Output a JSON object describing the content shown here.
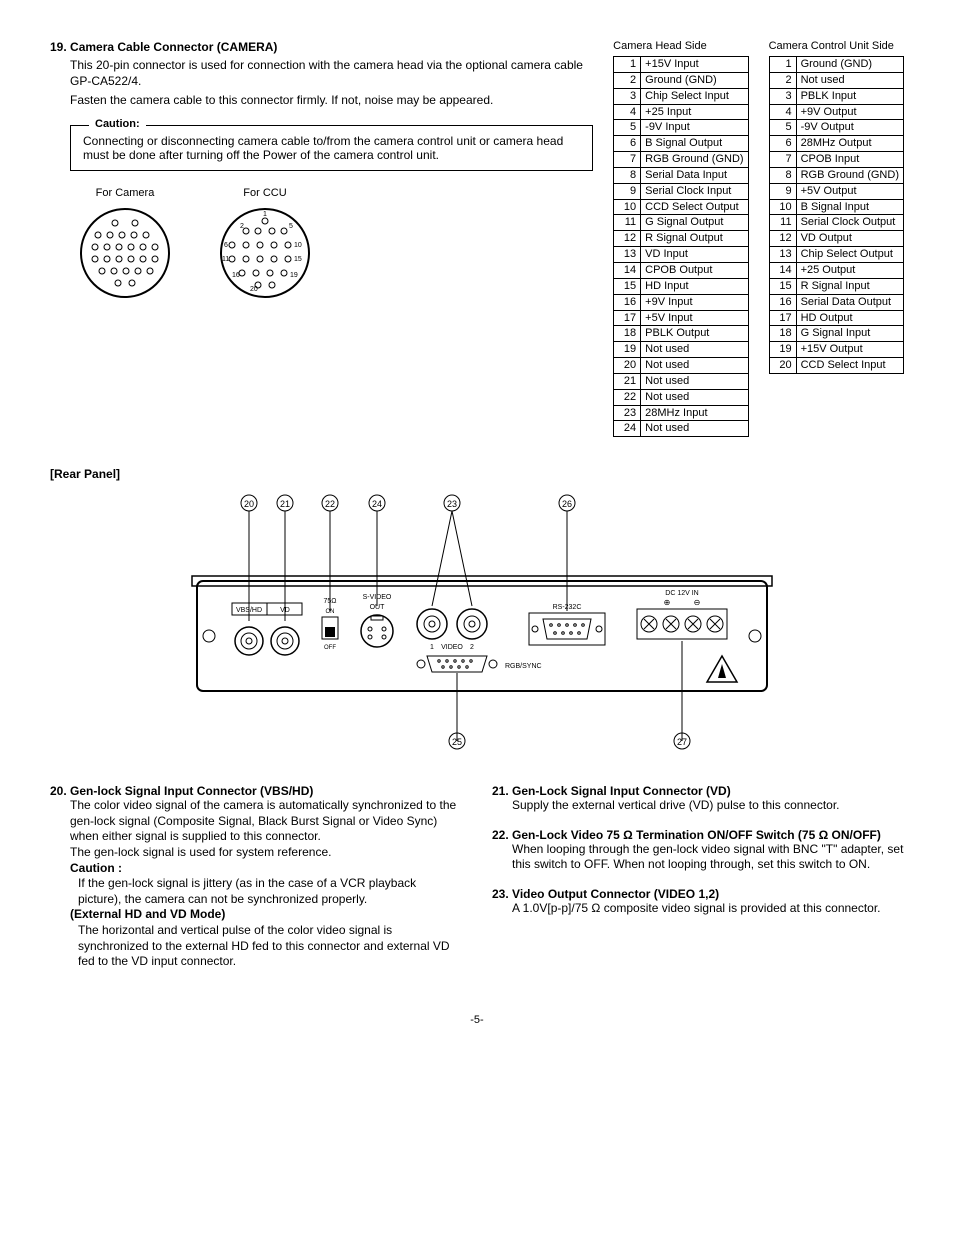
{
  "section19": {
    "num": "19.",
    "title": "Camera Cable Connector (CAMERA)",
    "p1": "This 20-pin connector is used for connection with the camera head via the optional camera cable GP-CA522/4.",
    "p2": "Fasten the camera cable to this connector firmly. If not, noise may be appeared.",
    "caution_label": "Caution:",
    "caution_text": "Connecting or disconnecting camera cable to/from the camera control unit or camera head must be done after turning off the Power of the camera control unit."
  },
  "conn_labels": {
    "camera": "For Camera",
    "ccu": "For CCU"
  },
  "table_head": {
    "title": "Camera Head Side",
    "rows": [
      [
        "1",
        "+15V Input"
      ],
      [
        "2",
        "Ground (GND)"
      ],
      [
        "3",
        "Chip Select Input"
      ],
      [
        "4",
        "+25 Input"
      ],
      [
        "5",
        "-9V Input"
      ],
      [
        "6",
        "B Signal Output"
      ],
      [
        "7",
        "RGB Ground (GND)"
      ],
      [
        "8",
        "Serial Data Input"
      ],
      [
        "9",
        "Serial Clock Input"
      ],
      [
        "10",
        "CCD Select Output"
      ],
      [
        "11",
        "G Signal Output"
      ],
      [
        "12",
        "R Signal Output"
      ],
      [
        "13",
        "VD Input"
      ],
      [
        "14",
        "CPOB Output"
      ],
      [
        "15",
        "HD Input"
      ],
      [
        "16",
        "+9V Input"
      ],
      [
        "17",
        "+5V Input"
      ],
      [
        "18",
        "PBLK Output"
      ],
      [
        "19",
        "Not used"
      ],
      [
        "20",
        "Not used"
      ],
      [
        "21",
        "Not used"
      ],
      [
        "22",
        "Not used"
      ],
      [
        "23",
        "28MHz Input"
      ],
      [
        "24",
        "Not used"
      ]
    ]
  },
  "table_ccu": {
    "title": "Camera Control Unit Side",
    "rows": [
      [
        "1",
        "Ground (GND)"
      ],
      [
        "2",
        "Not used"
      ],
      [
        "3",
        "PBLK Input"
      ],
      [
        "4",
        "+9V Output"
      ],
      [
        "5",
        "-9V Output"
      ],
      [
        "6",
        "28MHz Output"
      ],
      [
        "7",
        "CPOB Input"
      ],
      [
        "8",
        "RGB Ground (GND)"
      ],
      [
        "9",
        "+5V Output"
      ],
      [
        "10",
        "B Signal Input"
      ],
      [
        "11",
        "Serial Clock Output"
      ],
      [
        "12",
        "VD Output"
      ],
      [
        "13",
        "Chip Select Output"
      ],
      [
        "14",
        "+25 Output"
      ],
      [
        "15",
        "R Signal Input"
      ],
      [
        "16",
        "Serial Data Output"
      ],
      [
        "17",
        "HD Output"
      ],
      [
        "18",
        "G Signal Input"
      ],
      [
        "19",
        "+15V Output"
      ],
      [
        "20",
        "CCD Select Input"
      ]
    ]
  },
  "rear_label": "[Rear Panel]",
  "rear_callouts": [
    "20",
    "21",
    "22",
    "24",
    "23",
    "26",
    "25",
    "27"
  ],
  "rear_text": {
    "vbshd": "VBS/HD",
    "vd": "VD",
    "ohm75": "75Ω",
    "on": "ON",
    "off": "OFF",
    "svideo": "S-VIDEO",
    "out": "OUT",
    "video": "VIDEO",
    "v1": "1",
    "v2": "2",
    "rgbsync": "RGB/SYNC",
    "rs232c": "RS-232C",
    "dc12v": "DC 12V IN",
    "plus": "⊕",
    "minus": "⊖"
  },
  "section20": {
    "num": "20.",
    "title": "Gen-lock Signal Input Connector (VBS/HD)",
    "p1": "The color video signal of the camera is automatically synchronized to the gen-lock signal (Composite Signal, Black Burst Signal or Video Sync) when either signal is supplied to this connector.",
    "p2": "The gen-lock signal is used for system reference.",
    "caution_label": "Caution :",
    "caution_text": "If the gen-lock signal is jittery (as in the case of a VCR playback picture), the camera can not be synchronized properly.",
    "mode_label": "(External HD and VD Mode)",
    "mode_text": "The horizontal and vertical pulse of the color video signal is synchronized to the external HD fed to this connector and external VD fed to the VD input connector."
  },
  "section21": {
    "num": "21.",
    "title": "Gen-Lock Signal Input Connector (VD)",
    "p1": "Supply the external vertical drive (VD) pulse to this connector."
  },
  "section22": {
    "num": "22.",
    "title": "Gen-Lock Video 75 Ω Termination ON/OFF Switch (75 Ω ON/OFF)",
    "p1": "When looping through the gen-lock video signal with BNC \"T\" adapter, set this switch to OFF. When not looping through, set this switch to ON."
  },
  "section23": {
    "num": "23.",
    "title": "Video Output Connector (VIDEO 1,2)",
    "p1": "A 1.0V[p-p]/75 Ω composite video signal is provided at this connector."
  },
  "page_num": "-5-"
}
